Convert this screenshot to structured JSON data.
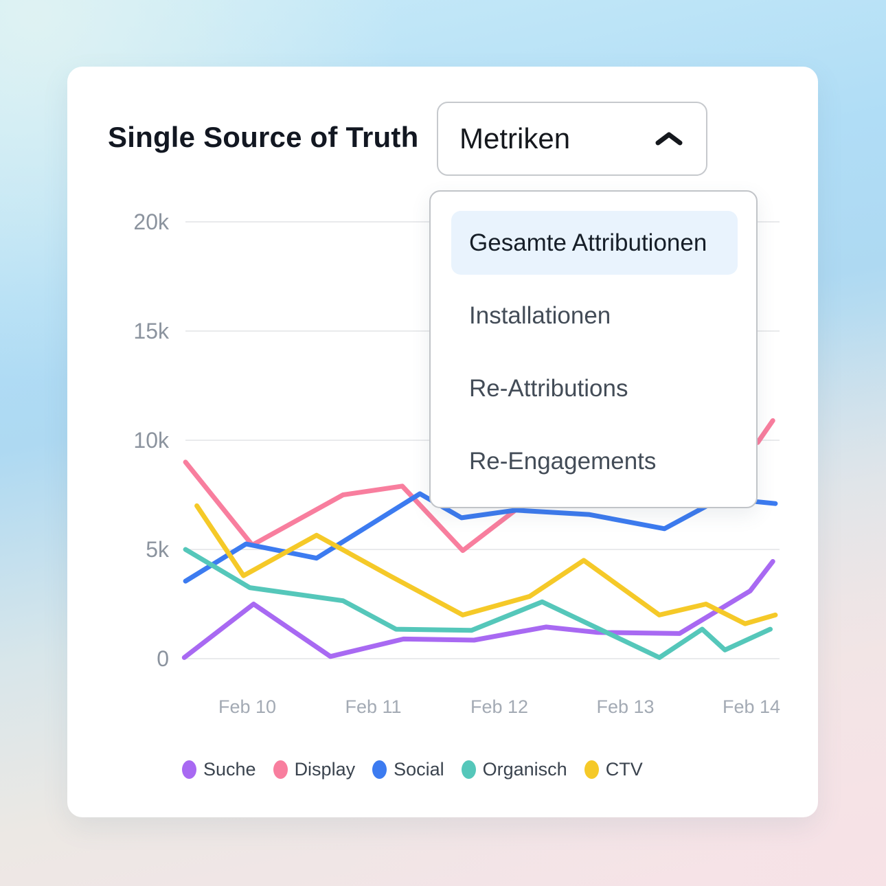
{
  "card": {
    "title": "Single Source of Truth"
  },
  "metrics_dropdown": {
    "label": "Metriken",
    "icon": "chevron-up",
    "highlight_color": "#e9f3fd",
    "options": [
      {
        "label": "Gesamte Attributionen",
        "selected": true
      },
      {
        "label": "Installationen",
        "selected": false
      },
      {
        "label": "Re-Attributions",
        "selected": false
      },
      {
        "label": "Re-Engagements",
        "selected": false
      }
    ]
  },
  "chart_data": {
    "type": "line",
    "title": "",
    "xlabel": "",
    "ylabel": "",
    "grid": true,
    "legend_position": "bottom",
    "x_axis": {
      "tick_labels": [
        "Feb 10",
        "Feb 11",
        "Feb 12",
        "Feb 13",
        "Feb 14"
      ],
      "tick_days": [
        0,
        1,
        2,
        3,
        4
      ],
      "note": "day offset: 0 = Feb 10, 4 = Feb 14; data extends ~half a day before Feb 10 and ~0.2 day past Feb 14"
    },
    "y_axis": {
      "tick_labels": [
        "0",
        "5k",
        "10k",
        "15k",
        "20k"
      ],
      "tick_values": [
        0,
        5000,
        10000,
        15000,
        20000
      ],
      "ylim": [
        0,
        20000
      ]
    },
    "series": [
      {
        "name": "Suche",
        "color": "#A869F2",
        "points": [
          [
            -0.5,
            50
          ],
          [
            0.05,
            2500
          ],
          [
            0.66,
            100
          ],
          [
            1.24,
            900
          ],
          [
            1.8,
            850
          ],
          [
            2.37,
            1450
          ],
          [
            2.78,
            1200
          ],
          [
            3.43,
            1150
          ],
          [
            3.99,
            3100
          ],
          [
            4.17,
            4450
          ]
        ]
      },
      {
        "name": "Display",
        "color": "#F87E9E",
        "points": [
          [
            -0.49,
            9000
          ],
          [
            0.04,
            5200
          ],
          [
            0.76,
            7500
          ],
          [
            1.23,
            7900
          ],
          [
            1.71,
            4950
          ],
          [
            2.15,
            6900
          ],
          [
            2.72,
            8000
          ],
          [
            3.21,
            8500
          ],
          [
            3.65,
            8900
          ],
          [
            4.05,
            9900
          ],
          [
            4.17,
            10900
          ]
        ]
      },
      {
        "name": "Social",
        "color": "#3C7BF0",
        "points": [
          [
            -0.49,
            3550
          ],
          [
            -0.01,
            5250
          ],
          [
            0.55,
            4600
          ],
          [
            1.37,
            7550
          ],
          [
            1.7,
            6450
          ],
          [
            2.13,
            6800
          ],
          [
            2.71,
            6600
          ],
          [
            3.31,
            5950
          ],
          [
            3.76,
            7350
          ],
          [
            4.19,
            7100
          ]
        ]
      },
      {
        "name": "Organisch",
        "color": "#55C7BA",
        "points": [
          [
            -0.49,
            5000
          ],
          [
            0.02,
            3250
          ],
          [
            0.76,
            2650
          ],
          [
            1.18,
            1350
          ],
          [
            1.78,
            1300
          ],
          [
            2.34,
            2600
          ],
          [
            3.27,
            50
          ],
          [
            3.61,
            1350
          ],
          [
            3.79,
            400
          ],
          [
            4.15,
            1350
          ]
        ]
      },
      {
        "name": "CTV",
        "color": "#F5C928",
        "points": [
          [
            -0.4,
            7000
          ],
          [
            -0.03,
            3800
          ],
          [
            0.55,
            5650
          ],
          [
            1.13,
            3800
          ],
          [
            1.71,
            2000
          ],
          [
            2.24,
            2850
          ],
          [
            2.67,
            4500
          ],
          [
            3.27,
            2000
          ],
          [
            3.64,
            2500
          ],
          [
            3.95,
            1600
          ],
          [
            4.19,
            2000
          ]
        ]
      }
    ]
  }
}
